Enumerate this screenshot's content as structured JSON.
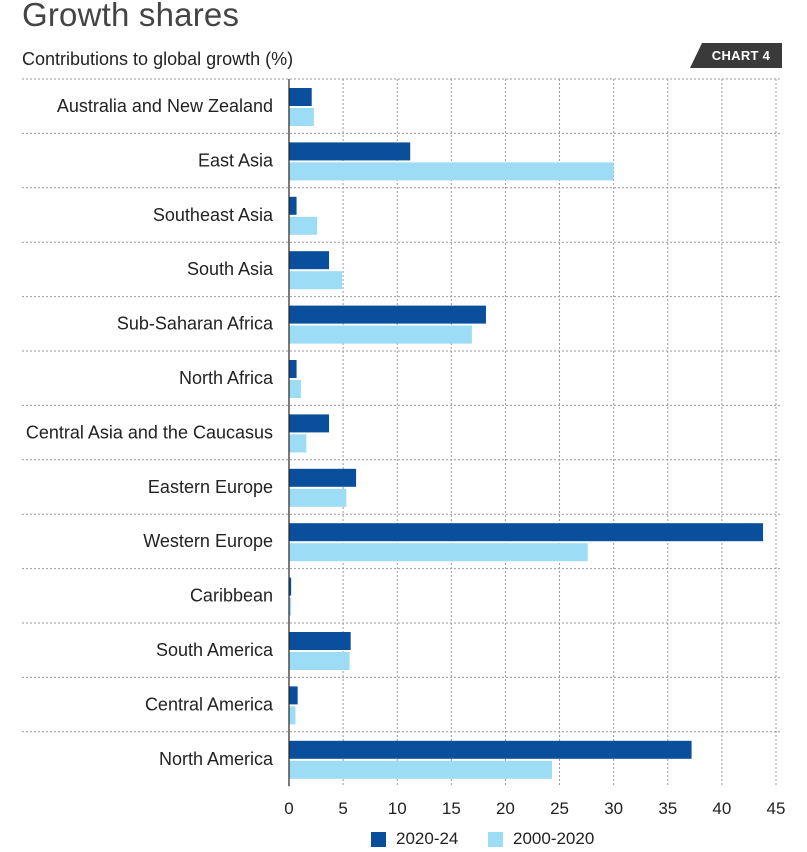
{
  "header": {
    "title": "Growth shares",
    "subtitle": "Contributions to global growth (%)",
    "badge": "CHART 4"
  },
  "colors": {
    "series_2020_24": "#0a4f9c",
    "series_2000_2020": "#9ddcf5",
    "badge_bg": "#3a3a3a",
    "grid": "#9a9a9a"
  },
  "chart_data": {
    "type": "bar",
    "orientation": "horizontal",
    "title": "Growth shares",
    "subtitle": "Contributions to global growth (%)",
    "xlabel": "",
    "ylabel": "",
    "xlim": [
      0,
      45
    ],
    "xticks": [
      0,
      5,
      10,
      15,
      20,
      25,
      30,
      35,
      40,
      45
    ],
    "grid": true,
    "legend": "bottom",
    "categories": [
      "Australia and New Zealand",
      "East Asia",
      "Southeast Asia",
      "South Asia",
      "Sub-Saharan Africa",
      "North Africa",
      "Central Asia and the Caucasus",
      "Eastern Europe",
      "Western Europe",
      "Caribbean",
      "South America",
      "Central America",
      "North America"
    ],
    "series": [
      {
        "name": "2020-24",
        "values": [
          2.1,
          11.2,
          0.7,
          3.7,
          18.2,
          0.7,
          3.7,
          6.2,
          43.8,
          0.2,
          5.7,
          0.8,
          37.2
        ]
      },
      {
        "name": "2000-2020",
        "values": [
          2.3,
          30.0,
          2.6,
          4.9,
          16.9,
          1.1,
          1.6,
          5.3,
          27.6,
          0.2,
          5.6,
          0.6,
          24.3
        ]
      }
    ]
  }
}
